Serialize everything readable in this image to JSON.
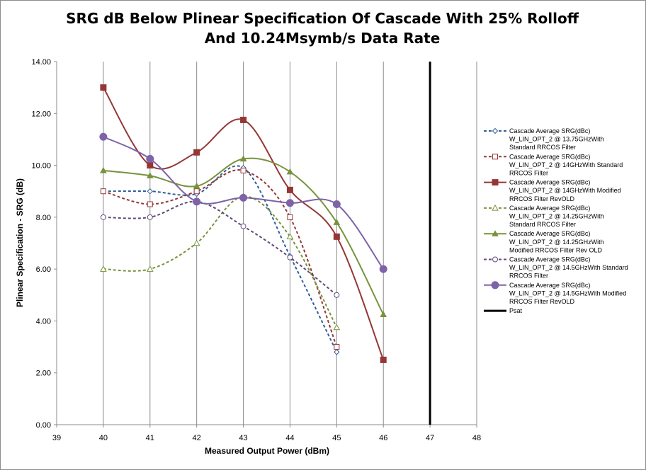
{
  "chart_data": {
    "type": "line",
    "title": "SRG dB Below Plinear Specification Of Cascade With 25% Rolloff And 10.24Msymb/s Data Rate",
    "xlabel": "Measured Output Power (dBm)",
    "ylabel": "Plinear Specification  - SRG (dB)",
    "xlim": [
      39,
      48
    ],
    "ylim": [
      0,
      14
    ],
    "xticks": [
      "39",
      "40",
      "41",
      "42",
      "43",
      "44",
      "45",
      "46",
      "47",
      "48"
    ],
    "yticks": [
      "0.00",
      "2.00",
      "4.00",
      "6.00",
      "8.00",
      "10.00",
      "12.00",
      "14.00"
    ],
    "grid": "vertical",
    "legend_position": "right",
    "series": [
      {
        "name": "Cascade Average SRG(dBc) W_LIN_OPT_2 @ 13.75GHzWith Standard RRCOS Filter",
        "legend_lines": [
          "Cascade Average SRG(dBc)",
          "W_LIN_OPT_2 @ 13.75GHzWith",
          "Standard RRCOS Filter"
        ],
        "color": "#2f5f98",
        "dash": true,
        "marker": "diamond-open",
        "x": [
          40,
          41,
          42,
          43,
          44,
          45
        ],
        "y": [
          9.0,
          9.0,
          8.9,
          9.9,
          6.5,
          2.8
        ]
      },
      {
        "name": "Cascade Average SRG(dBc) W_LIN_OPT_2 @ 14GHzWith Standard RRCOS Filter",
        "legend_lines": [
          "Cascade Average SRG(dBc)",
          "W_LIN_OPT_2 @ 14GHzWith Standard",
          "RRCOS Filter"
        ],
        "color": "#953735",
        "dash": true,
        "marker": "square-open",
        "x": [
          40,
          41,
          42,
          43,
          44,
          45
        ],
        "y": [
          9.0,
          8.5,
          9.0,
          9.8,
          8.0,
          3.0
        ]
      },
      {
        "name": "Cascade Average SRG(dBc) W_LIN_OPT_2 @ 14GHzWith Modified RRCOS Filter RevOLD",
        "legend_lines": [
          "Cascade Average SRG(dBc)",
          "W_LIN_OPT_2 @ 14GHzWith Modified",
          "RRCOS Filter RevOLD"
        ],
        "color": "#953735",
        "dash": false,
        "marker": "square",
        "x": [
          40,
          41,
          42,
          43,
          44,
          45,
          46
        ],
        "y": [
          13.0,
          10.0,
          10.5,
          11.75,
          9.05,
          7.25,
          2.5
        ]
      },
      {
        "name": "Cascade Average SRG(dBc) W_LIN_OPT_2 @ 14.25GHzWith Standard RRCOS Filter",
        "legend_lines": [
          "Cascade Average SRG(dBc)",
          "W_LIN_OPT_2 @ 14.25GHzWith",
          "Standard RRCOS Filter"
        ],
        "color": "#77933c",
        "dash": true,
        "marker": "triangle-open",
        "x": [
          40,
          41,
          42,
          43,
          44,
          45
        ],
        "y": [
          6.0,
          6.0,
          7.0,
          8.8,
          7.25,
          3.75
        ]
      },
      {
        "name": "Cascade Average SRG(dBc) W_LIN_OPT_2 @ 14.25GHzWith Modified RRCOS Filter Rev OLD",
        "legend_lines": [
          "Cascade Average SRG(dBc)",
          "W_LIN_OPT_2 @ 14.25GHzWith",
          "Modified RRCOS Filter Rev OLD"
        ],
        "color": "#77933c",
        "dash": false,
        "marker": "triangle",
        "x": [
          40,
          41,
          42,
          43,
          44,
          45,
          46
        ],
        "y": [
          9.8,
          9.6,
          9.2,
          10.25,
          9.75,
          7.8,
          4.25
        ]
      },
      {
        "name": "Cascade Average SRG(dBc) W_LIN_OPT_2 @ 14.5GHzWith Standard RRCOS Filter",
        "legend_lines": [
          "Cascade Average SRG(dBc)",
          "W_LIN_OPT_2 @ 14.5GHzWith Standard",
          "RRCOS Filter"
        ],
        "color": "#604a7b",
        "dash": true,
        "marker": "circle-open",
        "x": [
          40,
          41,
          42,
          43,
          44,
          45
        ],
        "y": [
          8.0,
          8.0,
          8.6,
          7.65,
          6.45,
          5.0
        ]
      },
      {
        "name": "Cascade Average SRG(dBc) W_LIN_OPT_2 @ 14.5GHzWith Modified RRCOS Filter RevOLD",
        "legend_lines": [
          "Cascade Average SRG(dBc)",
          "W_LIN_OPT_2 @ 14.5GHzWith Modified",
          "RRCOS Filter RevOLD"
        ],
        "color": "#7e63a8",
        "dash": false,
        "marker": "circle",
        "x": [
          40,
          41,
          42,
          43,
          44,
          45,
          46
        ],
        "y": [
          11.1,
          10.25,
          8.6,
          8.75,
          8.55,
          8.5,
          6.0
        ]
      },
      {
        "name": "Psat",
        "legend_lines": [
          "Psat"
        ],
        "color": "#000000",
        "dash": false,
        "marker": "none",
        "width": 3,
        "x": [
          47,
          47
        ],
        "y": [
          0,
          14
        ]
      }
    ]
  }
}
